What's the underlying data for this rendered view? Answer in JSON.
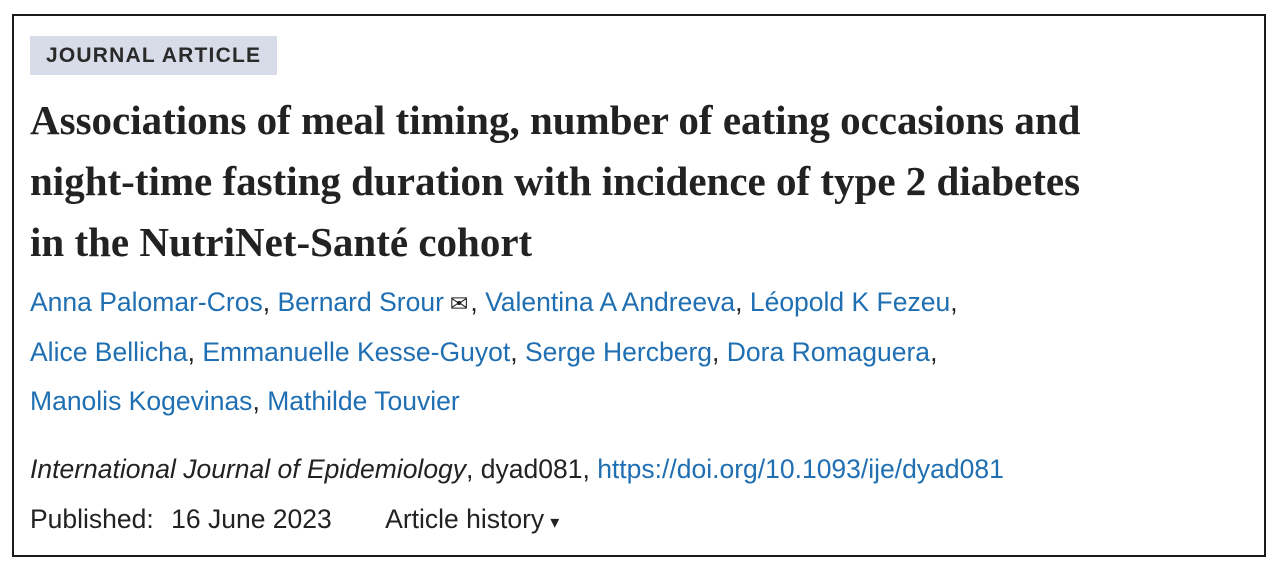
{
  "article_type": "JOURNAL ARTICLE",
  "title_lines": [
    "Associations of meal timing, number of eating occasions and",
    "night-time fasting duration with incidence of type 2 diabetes",
    "in the NutriNet-Santé cohort"
  ],
  "author_lines": [
    [
      {
        "name": "Anna Palomar-Cros"
      },
      {
        "name": "Bernard Srour",
        "corresponding": true
      },
      {
        "name": "Valentina A Andreeva"
      },
      {
        "name": "Léopold K Fezeu"
      }
    ],
    [
      {
        "name": "Alice Bellicha"
      },
      {
        "name": "Emmanuelle Kesse-Guyot"
      },
      {
        "name": "Serge Hercberg"
      },
      {
        "name": "Dora Romaguera"
      }
    ],
    [
      {
        "name": "Manolis Kogevinas"
      },
      {
        "name": "Mathilde Touvier"
      }
    ]
  ],
  "separator": ",",
  "mail_icon": "envelope-icon",
  "citation": {
    "journal": "International Journal of Epidemiology",
    "article_id": ", dyad081, ",
    "doi": "https://doi.org/10.1093/ije/dyad081"
  },
  "published": {
    "label": "Published:",
    "date": "16 June 2023",
    "history_label": "Article history",
    "caret": "▾"
  },
  "colors": {
    "link": "#1f6fb2",
    "tag_bg": "#d7dce8"
  }
}
